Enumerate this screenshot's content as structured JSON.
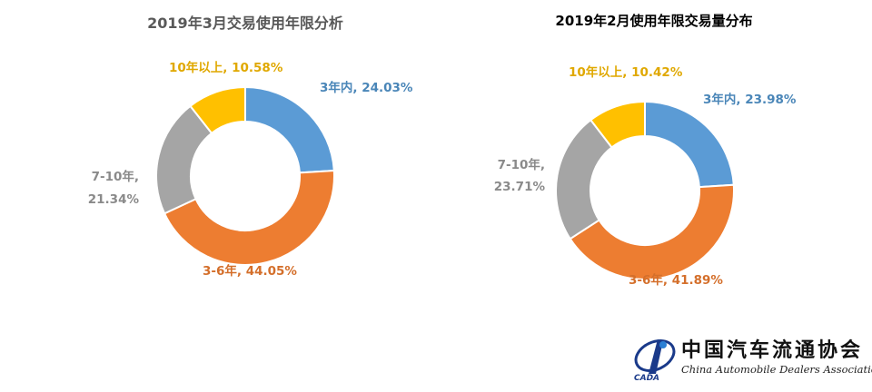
{
  "chart_data": [
    {
      "type": "pie",
      "variant": "donut",
      "title": "2019年3月交易使用年限分析",
      "categories": [
        "3年内",
        "3-6年",
        "7-10年",
        "10年以上"
      ],
      "values": [
        24.03,
        44.05,
        21.34,
        10.58
      ],
      "unit": "%",
      "labels": [
        {
          "line1": "3年内, 24.03%",
          "line2": ""
        },
        {
          "line1": "3-6年, 44.05%",
          "line2": ""
        },
        {
          "line1": "7-10年,",
          "line2": "21.34%"
        },
        {
          "line1": "10年以上, 10.58%",
          "line2": ""
        }
      ],
      "colors": [
        "#5b9bd5",
        "#ed7d31",
        "#a5a5a5",
        "#ffc000"
      ],
      "label_colors": [
        "#4a86b8",
        "#d46f2b",
        "#8a8a8a",
        "#e0a800"
      ]
    },
    {
      "type": "pie",
      "variant": "donut",
      "title": "2019年2月使用年限交易量分布",
      "categories": [
        "3年内",
        "3-6年",
        "7-10年",
        "10年以上"
      ],
      "values": [
        23.98,
        41.89,
        23.71,
        10.42
      ],
      "unit": "%",
      "labels": [
        {
          "line1": "3年内, 23.98%",
          "line2": ""
        },
        {
          "line1": "3-6年, 41.89%",
          "line2": ""
        },
        {
          "line1": "7-10年,",
          "line2": "23.71%"
        },
        {
          "line1": "10年以上, 10.42%",
          "line2": ""
        }
      ],
      "colors": [
        "#5b9bd5",
        "#ed7d31",
        "#a5a5a5",
        "#ffc000"
      ],
      "label_colors": [
        "#4a86b8",
        "#d46f2b",
        "#8a8a8a",
        "#e0a800"
      ]
    }
  ],
  "footer": {
    "logo_cn": "中国汽车流通协会",
    "logo_en": "China Automobile Dealers Association",
    "logo_abbr": "CADA"
  }
}
